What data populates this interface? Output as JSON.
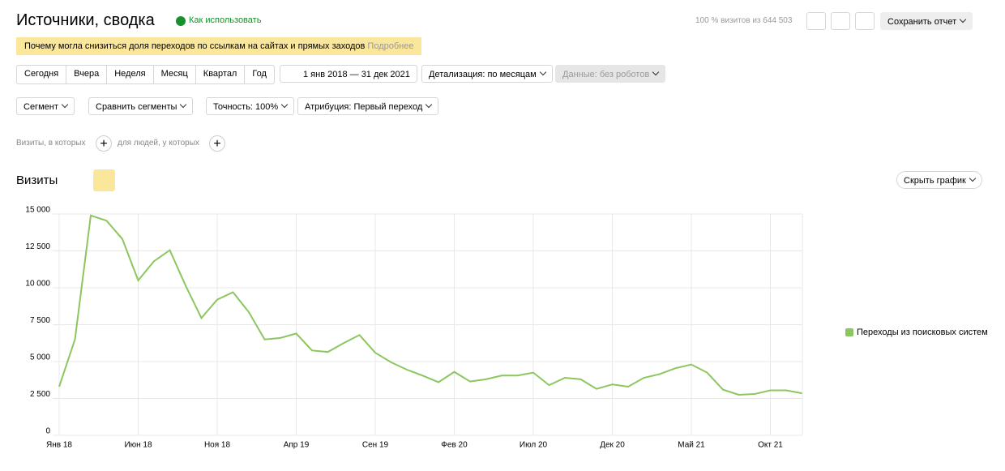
{
  "header": {
    "title": "Источники, сводка",
    "help": "Как использовать",
    "visits_info": "100 % визитов из 644 503",
    "save": "Сохранить отчет"
  },
  "notice": {
    "text": "Почему могла снизиться доля переходов по ссылкам на сайтах и прямых заходов",
    "link": "Подробнее"
  },
  "periods": [
    "Сегодня",
    "Вчера",
    "Неделя",
    "Месяц",
    "Квартал",
    "Год"
  ],
  "date_range": "1 янв 2018 — 31 дек 2021",
  "detail": "Детализация: по месяцам",
  "robots": "Данные: без роботов",
  "filters": [
    "Сегмент",
    "Сравнить сегменты",
    "Точность: 100%",
    "Атрибуция: Первый переход"
  ],
  "segment_row": [
    "Визиты, в которых",
    "для людей, у которых"
  ],
  "chart_header": {
    "title": "Визиты",
    "hide": "Скрыть график"
  },
  "chart_data": {
    "type": "line",
    "categories": [
      "Янв 18",
      null,
      null,
      null,
      null,
      "Июн 18",
      null,
      null,
      null,
      null,
      "Ноя 18",
      null,
      null,
      null,
      null,
      "Апр 19",
      null,
      null,
      null,
      null,
      "Сен 19",
      null,
      null,
      null,
      null,
      "Фев 20",
      null,
      null,
      null,
      null,
      "Июл 20",
      null,
      null,
      null,
      null,
      "Дек 20",
      null,
      null,
      null,
      null,
      "Май 21",
      null,
      null,
      null,
      null,
      "Окт 21",
      null,
      null
    ],
    "series": [
      {
        "name": "Переходы из поисковых систем",
        "color": "#8cc65f",
        "values": [
          3300,
          6500,
          14900,
          14550,
          13300,
          10500,
          11800,
          12550,
          10150,
          7950,
          9200,
          9700,
          8350,
          6500,
          6600,
          6900,
          5750,
          5650,
          6250,
          6800,
          5600,
          4950,
          4450,
          4050,
          3600,
          4300,
          3650,
          3800,
          4050,
          4050,
          4250,
          3400,
          3900,
          3800,
          3150,
          3450,
          3300,
          3900,
          4150,
          4550,
          4800,
          4250,
          3100,
          2750,
          2800,
          3050,
          3050,
          2850
        ]
      }
    ],
    "ylim": [
      0,
      15000
    ],
    "yticks": [
      0,
      {
        "value": 2500,
        "label": "2 500"
      },
      {
        "value": 5000,
        "label": "5 000"
      },
      {
        "value": 7500,
        "label": "7 500"
      },
      {
        "value": 10000,
        "label": "10 000"
      },
      {
        "value": 12500,
        "label": "12 500"
      },
      {
        "value": 15000,
        "label": "15 000"
      }
    ],
    "grid": true,
    "legend": "right"
  }
}
